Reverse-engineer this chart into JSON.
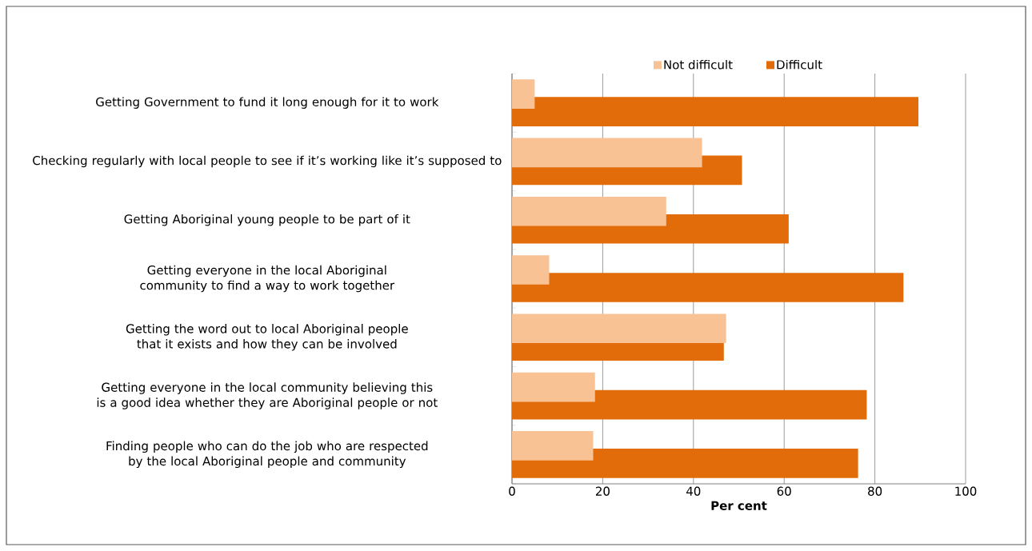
{
  "chart_data": {
    "type": "bar",
    "orientation": "horizontal",
    "xlabel": "Per cent",
    "categories": [
      "Getting Government to fund it long enough for it to work",
      "Checking regularly with local people to see if it’s working like it’s supposed to",
      "Getting Aboriginal young people to be part of it",
      "Getting everyone in the local Aboriginal community to find a way to work together",
      "Getting the word out to local Aboriginal people that it exists and  how they can be involved",
      "Getting everyone in the local community believing this is a good idea whether they are Aboriginal people or not",
      "Finding people who can do the job who are respected by the local Aboriginal people and community"
    ],
    "series": [
      {
        "name": "Not difficult",
        "color": "#f9c294",
        "values": [
          5.0,
          41.9,
          34.0,
          8.2,
          47.2,
          18.3,
          17.9
        ]
      },
      {
        "name": "Difficult",
        "color": "#e36c0a",
        "values": [
          89.6,
          50.7,
          61.0,
          86.3,
          46.7,
          78.2,
          76.3
        ]
      }
    ],
    "xlim": [
      0,
      100
    ],
    "xticks": [
      0,
      20,
      40,
      60,
      80,
      100
    ],
    "grid": "x",
    "legend": "top"
  }
}
